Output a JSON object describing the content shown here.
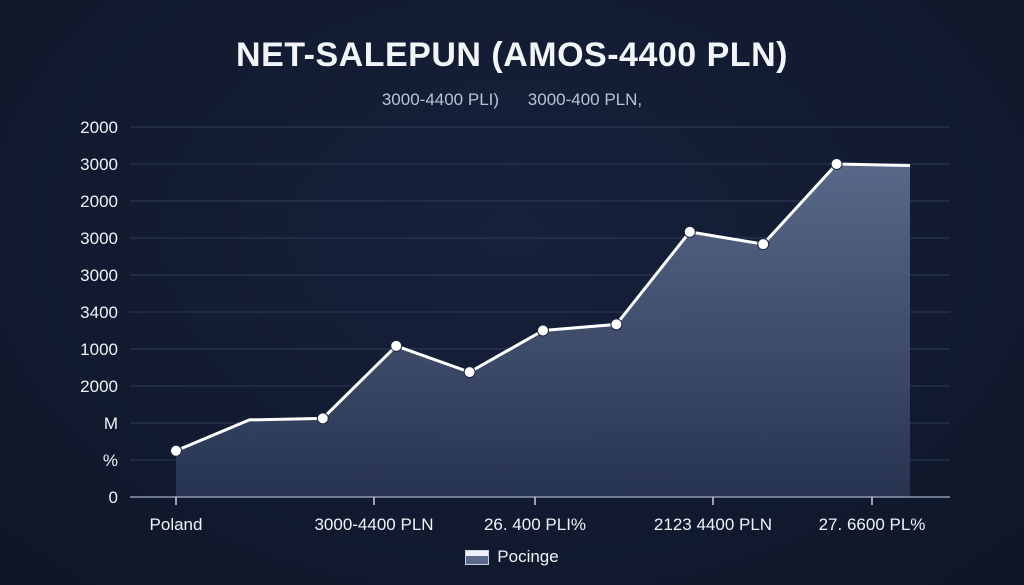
{
  "chart_data": {
    "type": "area",
    "title": "NET-SALEPUN (AMOS-4400 PLN)",
    "subtitles": [
      "3000-4400 PLI)",
      "3000-400 PLN,"
    ],
    "y_tick_labels": [
      "2000",
      "3000",
      "2000",
      "3000",
      "3000",
      "3400",
      "1000",
      "2000",
      "M",
      "%",
      "0"
    ],
    "x_tick_labels": [
      "Poland",
      "3000-4400 PLN",
      "26. 400 PLI%",
      "2123 4400 PLN",
      "27. 6600 PL%"
    ],
    "series": [
      {
        "name": "Pocinge",
        "values": [
          1.5,
          2.5,
          2.55,
          4.9,
          4.05,
          5.4,
          5.6,
          8.6,
          8.2,
          10.8,
          10.75
        ]
      }
    ],
    "ylim": [
      0,
      12
    ],
    "grid": true,
    "legend_position": "bottom-center",
    "colors": {
      "background": "#121b30",
      "line": "#ffffff",
      "area_top": "#5d6c8d",
      "area_bottom": "#283552",
      "grid": "#2e3a55"
    }
  }
}
